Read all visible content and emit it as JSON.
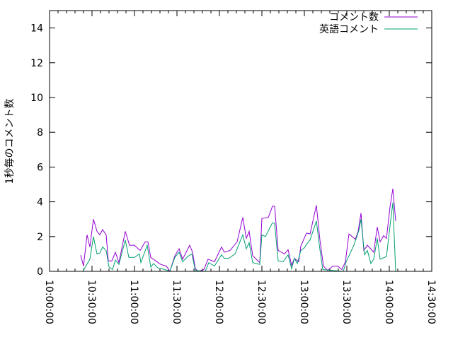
{
  "chart_data": {
    "type": "line",
    "title": "",
    "xlabel": "",
    "ylabel": "1秒毎のコメント数",
    "xlim": [
      "10:00:00",
      "14:30:00"
    ],
    "ylim": [
      0,
      15
    ],
    "x_ticks": [
      "10:00:00",
      "10:30:00",
      "11:00:00",
      "11:30:00",
      "12:00:00",
      "12:30:00",
      "13:00:00",
      "13:30:00",
      "14:00:00",
      "14:30:00"
    ],
    "y_ticks": [
      0,
      2,
      4,
      6,
      8,
      10,
      12,
      14
    ],
    "grid": false,
    "legend_position": "top-right",
    "series": [
      {
        "name": "コメント数",
        "color": "#9400d3",
        "points": [
          [
            "10:22:00",
            0.93
          ],
          [
            "10:24:00",
            0.3
          ],
          [
            "10:26:30",
            2.1
          ],
          [
            "10:28:30",
            1.4
          ],
          [
            "10:31:00",
            3.0
          ],
          [
            "10:33:30",
            2.3
          ],
          [
            "10:35:30",
            2.1
          ],
          [
            "10:37:30",
            2.4
          ],
          [
            "10:40:00",
            2.1
          ],
          [
            "10:41:30",
            0.6
          ],
          [
            "10:44:00",
            0.6
          ],
          [
            "10:46:30",
            1.1
          ],
          [
            "10:49:00",
            0.5
          ],
          [
            "10:53:30",
            2.3
          ],
          [
            "10:56:30",
            1.5
          ],
          [
            "11:00:00",
            1.5
          ],
          [
            "11:04:00",
            1.2
          ],
          [
            "11:07:30",
            1.7
          ],
          [
            "11:09:30",
            1.7
          ],
          [
            "11:11:30",
            0.8
          ],
          [
            "11:15:00",
            0.6
          ],
          [
            "11:18:30",
            0.4
          ],
          [
            "11:22:30",
            0.3
          ],
          [
            "11:25:00",
            0.0
          ],
          [
            "11:28:30",
            0.9
          ],
          [
            "11:31:30",
            1.3
          ],
          [
            "11:34:00",
            0.7
          ],
          [
            "11:39:00",
            1.5
          ],
          [
            "11:41:00",
            1.1
          ],
          [
            "11:43:00",
            0.15
          ],
          [
            "11:45:00",
            0.0
          ],
          [
            "11:49:00",
            0.1
          ],
          [
            "11:52:00",
            0.7
          ],
          [
            "11:56:30",
            0.55
          ],
          [
            "12:01:30",
            1.4
          ],
          [
            "12:03:30",
            1.1
          ],
          [
            "12:07:30",
            1.2
          ],
          [
            "12:12:30",
            1.7
          ],
          [
            "12:16:30",
            3.1
          ],
          [
            "12:19:00",
            1.9
          ],
          [
            "12:21:00",
            2.3
          ],
          [
            "12:23:30",
            0.9
          ],
          [
            "12:28:30",
            0.5
          ],
          [
            "12:30:00",
            3.05
          ],
          [
            "12:34:30",
            3.1
          ],
          [
            "12:37:30",
            3.75
          ],
          [
            "12:39:00",
            3.75
          ],
          [
            "12:41:30",
            1.2
          ],
          [
            "12:46:00",
            1.0
          ],
          [
            "12:48:30",
            1.25
          ],
          [
            "12:51:00",
            0.35
          ],
          [
            "12:53:00",
            0.75
          ],
          [
            "12:56:00",
            0.55
          ],
          [
            "12:57:30",
            1.45
          ],
          [
            "13:01:30",
            2.2
          ],
          [
            "13:04:00",
            2.15
          ],
          [
            "13:08:30",
            3.8
          ],
          [
            "13:11:00",
            1.8
          ],
          [
            "13:13:30",
            0.3
          ],
          [
            "13:16:30",
            0.05
          ],
          [
            "13:20:00",
            0.3
          ],
          [
            "13:23:30",
            0.3
          ],
          [
            "13:26:30",
            0.1
          ],
          [
            "13:29:00",
            0.55
          ],
          [
            "13:31:30",
            2.15
          ],
          [
            "13:36:00",
            1.85
          ],
          [
            "13:38:00",
            2.3
          ],
          [
            "13:40:00",
            3.35
          ],
          [
            "13:42:00",
            1.2
          ],
          [
            "13:44:30",
            1.5
          ],
          [
            "13:49:00",
            1.1
          ],
          [
            "13:51:30",
            2.55
          ],
          [
            "13:53:30",
            1.7
          ],
          [
            "13:56:00",
            2.05
          ],
          [
            "13:58:00",
            1.9
          ],
          [
            "14:00:30",
            3.7
          ],
          [
            "14:02:30",
            4.75
          ],
          [
            "14:04:30",
            2.9
          ]
        ]
      },
      {
        "name": "英語コメント",
        "color": "#009e73",
        "points": [
          [
            "10:23:30",
            0.0
          ],
          [
            "10:28:30",
            0.7
          ],
          [
            "10:31:00",
            2.0
          ],
          [
            "10:33:30",
            1.0
          ],
          [
            "10:35:30",
            1.05
          ],
          [
            "10:37:30",
            1.4
          ],
          [
            "10:40:00",
            1.2
          ],
          [
            "10:42:00",
            0.25
          ],
          [
            "10:44:30",
            0.1
          ],
          [
            "10:46:30",
            0.65
          ],
          [
            "10:49:00",
            0.4
          ],
          [
            "10:53:30",
            1.8
          ],
          [
            "10:56:00",
            0.8
          ],
          [
            "11:00:00",
            0.8
          ],
          [
            "11:03:30",
            1.0
          ],
          [
            "11:04:30",
            0.5
          ],
          [
            "11:09:00",
            1.5
          ],
          [
            "11:11:30",
            0.25
          ],
          [
            "11:13:30",
            0.45
          ],
          [
            "11:16:30",
            0.2
          ],
          [
            "11:21:30",
            0.1
          ],
          [
            "11:25:00",
            0.0
          ],
          [
            "11:28:30",
            0.8
          ],
          [
            "11:31:30",
            1.1
          ],
          [
            "11:34:00",
            0.55
          ],
          [
            "11:37:30",
            0.85
          ],
          [
            "11:40:30",
            1.0
          ],
          [
            "11:43:00",
            0.05
          ],
          [
            "11:50:00",
            0.0
          ],
          [
            "11:52:30",
            0.5
          ],
          [
            "11:56:30",
            0.3
          ],
          [
            "12:01:30",
            0.95
          ],
          [
            "12:03:30",
            0.75
          ],
          [
            "12:06:30",
            0.75
          ],
          [
            "12:11:00",
            1.0
          ],
          [
            "12:16:30",
            2.1
          ],
          [
            "12:19:00",
            1.3
          ],
          [
            "12:21:00",
            1.65
          ],
          [
            "12:23:30",
            0.5
          ],
          [
            "12:28:30",
            0.4
          ],
          [
            "12:30:00",
            2.1
          ],
          [
            "12:32:30",
            2.0
          ],
          [
            "12:37:30",
            2.8
          ],
          [
            "12:39:00",
            2.75
          ],
          [
            "12:41:30",
            0.6
          ],
          [
            "12:45:00",
            0.55
          ],
          [
            "12:48:30",
            0.95
          ],
          [
            "12:51:00",
            0.15
          ],
          [
            "12:53:00",
            0.75
          ],
          [
            "12:55:00",
            0.45
          ],
          [
            "12:57:30",
            1.2
          ],
          [
            "13:00:00",
            1.35
          ],
          [
            "13:01:30",
            1.55
          ],
          [
            "13:04:00",
            1.8
          ],
          [
            "13:08:30",
            2.9
          ],
          [
            "13:10:30",
            1.55
          ],
          [
            "13:13:00",
            0.1
          ],
          [
            "13:20:00",
            0.05
          ],
          [
            "13:27:30",
            0.0
          ],
          [
            "13:29:30",
            0.55
          ],
          [
            "13:35:00",
            1.5
          ],
          [
            "13:38:30",
            2.35
          ],
          [
            "13:40:00",
            3.0
          ],
          [
            "13:42:30",
            0.95
          ],
          [
            "13:44:30",
            1.2
          ],
          [
            "13:47:00",
            0.45
          ],
          [
            "13:49:00",
            0.7
          ],
          [
            "13:51:30",
            1.9
          ],
          [
            "13:53:30",
            0.7
          ],
          [
            "13:58:00",
            0.85
          ],
          [
            "14:00:30",
            2.6
          ],
          [
            "14:02:30",
            3.95
          ],
          [
            "14:04:30",
            0.0
          ]
        ]
      }
    ]
  }
}
